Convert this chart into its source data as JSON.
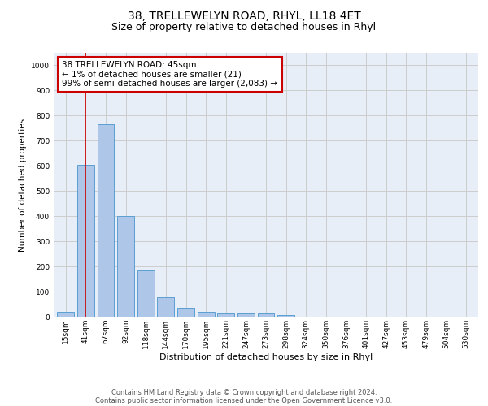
{
  "title": "38, TRELLEWELYN ROAD, RHYL, LL18 4ET",
  "subtitle": "Size of property relative to detached houses in Rhyl",
  "xlabel": "Distribution of detached houses by size in Rhyl",
  "ylabel": "Number of detached properties",
  "footnote1": "Contains HM Land Registry data © Crown copyright and database right 2024.",
  "footnote2": "Contains public sector information licensed under the Open Government Licence v3.0.",
  "bar_labels": [
    "15sqm",
    "41sqm",
    "67sqm",
    "92sqm",
    "118sqm",
    "144sqm",
    "170sqm",
    "195sqm",
    "221sqm",
    "247sqm",
    "273sqm",
    "298sqm",
    "324sqm",
    "350sqm",
    "376sqm",
    "401sqm",
    "427sqm",
    "453sqm",
    "479sqm",
    "504sqm",
    "530sqm"
  ],
  "bar_values": [
    18,
    605,
    765,
    400,
    185,
    78,
    35,
    18,
    12,
    14,
    12,
    7,
    0,
    0,
    0,
    0,
    0,
    0,
    0,
    0,
    0
  ],
  "bar_color": "#aec6e8",
  "bar_edge_color": "#5a9fd4",
  "property_line_x": 1,
  "property_line_color": "#cc0000",
  "annotation_text": "38 TRELLEWELYN ROAD: 45sqm\n← 1% of detached houses are smaller (21)\n99% of semi-detached houses are larger (2,083) →",
  "annotation_box_color": "#cc0000",
  "ylim": [
    0,
    1050
  ],
  "yticks": [
    0,
    100,
    200,
    300,
    400,
    500,
    600,
    700,
    800,
    900,
    1000
  ],
  "grid_color": "#cccccc",
  "bg_color": "#e8eef7",
  "title_fontsize": 10,
  "subtitle_fontsize": 9,
  "axis_label_fontsize": 7.5,
  "tick_fontsize": 6.5,
  "annotation_fontsize": 7.5,
  "xlabel_fontsize": 8,
  "footnote_fontsize": 6
}
